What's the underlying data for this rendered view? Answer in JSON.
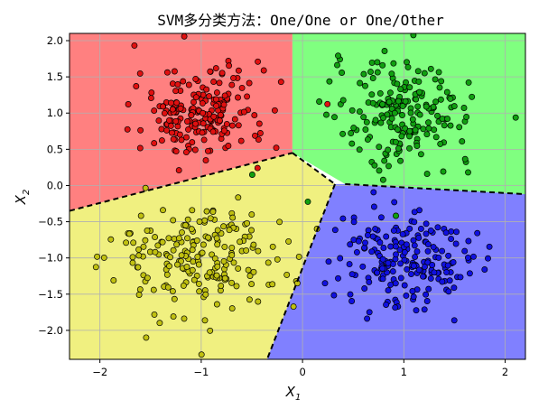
{
  "chart_data": {
    "type": "scatter",
    "title": "SVM多分类方法：One/One or One/Other",
    "xlabel": {
      "base": "X",
      "sub": "1"
    },
    "ylabel": {
      "base": "X",
      "sub": "2"
    },
    "xlim": [
      -2.3,
      2.2
    ],
    "ylim": [
      -2.4,
      2.1
    ],
    "xticks": [
      -2,
      -1,
      0,
      1,
      2
    ],
    "yticks": [
      -2.0,
      -1.5,
      -1.0,
      -0.5,
      0.0,
      0.5,
      1.0,
      1.5,
      2.0
    ],
    "xtick_labels": [
      "−2",
      "−1",
      "0",
      "1",
      "2"
    ],
    "ytick_labels": [
      "−2.0",
      "−1.5",
      "−1.0",
      "−0.5",
      "0.0",
      "0.5",
      "1.0",
      "1.5",
      "2.0"
    ],
    "grid": true,
    "colors": {
      "red_region": "#ff8080",
      "green_region": "#80ff80",
      "yellow_region": "#f0f080",
      "blue_region": "#8080ff",
      "red_points": "#e01010",
      "green_points": "#10a010",
      "yellow_points": "#c0c010",
      "blue_points": "#1010e0"
    },
    "clusters": [
      {
        "class": "red",
        "center": [
          -1.0,
          1.0
        ],
        "std": 0.32,
        "n": 200
      },
      {
        "class": "green",
        "center": [
          1.0,
          1.0
        ],
        "std": 0.35,
        "n": 200
      },
      {
        "class": "yellow",
        "center": [
          -1.0,
          -1.0
        ],
        "std": 0.42,
        "n": 200
      },
      {
        "class": "blue",
        "center": [
          1.0,
          -1.0
        ],
        "std": 0.32,
        "n": 200
      }
    ],
    "regions": [
      {
        "class": "red",
        "polygon": [
          [
            -2.3,
            -0.35
          ],
          [
            -0.1,
            0.45
          ],
          [
            -0.1,
            2.1
          ],
          [
            -2.3,
            2.1
          ]
        ]
      },
      {
        "class": "green",
        "polygon": [
          [
            -0.1,
            2.1
          ],
          [
            2.2,
            2.1
          ],
          [
            2.2,
            -0.12
          ],
          [
            0.42,
            0.02
          ],
          [
            -0.1,
            0.45
          ]
        ]
      },
      {
        "class": "yellow",
        "polygon": [
          [
            -2.3,
            -0.35
          ],
          [
            -0.1,
            0.45
          ],
          [
            0.32,
            0.02
          ],
          [
            -0.35,
            -2.4
          ],
          [
            -2.3,
            -2.4
          ]
        ]
      },
      {
        "class": "blue",
        "polygon": [
          [
            0.42,
            0.02
          ],
          [
            2.2,
            -0.12
          ],
          [
            2.2,
            -2.4
          ],
          [
            -0.35,
            -2.4
          ],
          [
            0.32,
            0.02
          ]
        ]
      }
    ],
    "boundaries": [
      [
        [
          -2.3,
          -0.35
        ],
        [
          -0.1,
          0.45
        ]
      ],
      [
        [
          -0.1,
          0.45
        ],
        [
          0.32,
          0.02
        ]
      ],
      [
        [
          0.32,
          0.02
        ],
        [
          -0.35,
          -2.4
        ]
      ],
      [
        [
          0.42,
          0.02
        ],
        [
          2.2,
          -0.12
        ]
      ]
    ]
  }
}
